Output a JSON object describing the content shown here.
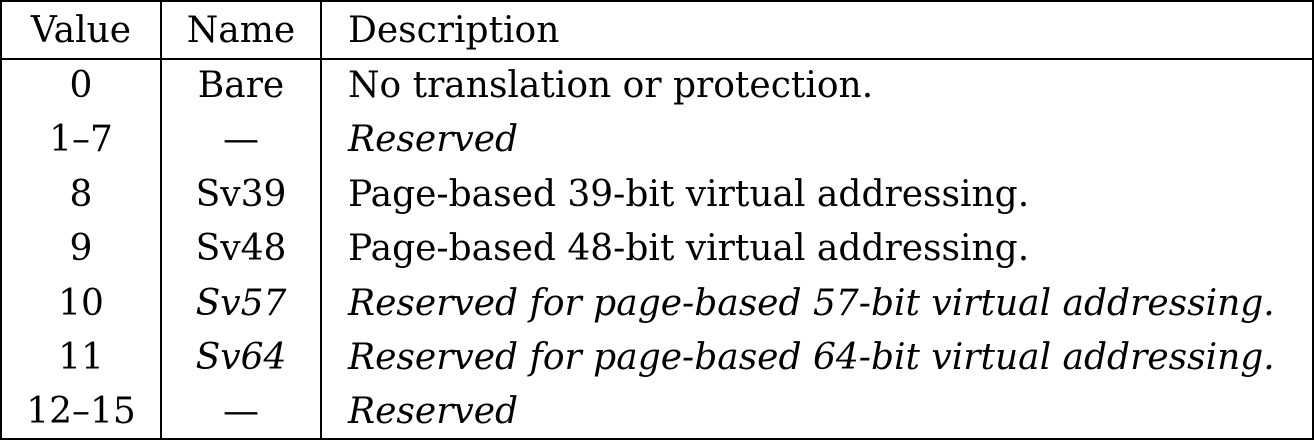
{
  "header": {
    "value": "Value",
    "name": "Name",
    "description": "Description"
  },
  "rows": [
    {
      "value": "0",
      "name": "Bare",
      "description": "No translation or protection."
    },
    {
      "value": "1–7",
      "name": "—",
      "description": "Reserved"
    },
    {
      "value": "8",
      "name": "Sv39",
      "description": "Page-based 39-bit virtual addressing."
    },
    {
      "value": "9",
      "name": "Sv48",
      "description": "Page-based 48-bit virtual addressing."
    },
    {
      "value": "10",
      "name": "Sv57",
      "description": "Reserved for page-based 57-bit virtual addressing."
    },
    {
      "value": "11",
      "name": "Sv64",
      "description": "Reserved for page-based 64-bit virtual addressing."
    },
    {
      "value": "12–15",
      "name": "—",
      "description": "Reserved"
    }
  ]
}
